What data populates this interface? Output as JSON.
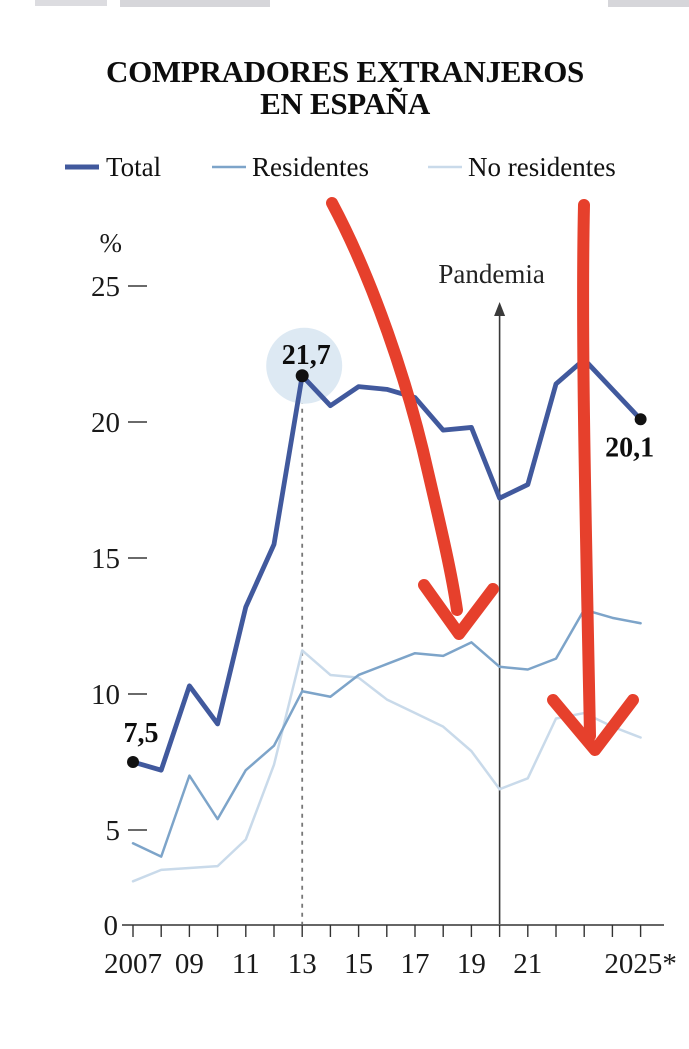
{
  "title": {
    "line1": "COMPRADORES EXTRANJEROS",
    "line2": "EN ESPAÑA"
  },
  "legend": [
    {
      "label": "Total",
      "color": "#41599d",
      "stroke_width": 5
    },
    {
      "label": "Residentes",
      "color": "#7da4c9",
      "stroke_width": 2.5
    },
    {
      "label": "No residentes",
      "color": "#c9daea",
      "stroke_width": 2.5
    }
  ],
  "chart_data": {
    "type": "line",
    "title": "Compradores extranjeros en España",
    "unit": "%",
    "x": [
      2007,
      2008,
      2009,
      2010,
      2011,
      2012,
      2013,
      2014,
      2015,
      2016,
      2017,
      2018,
      2019,
      2020,
      2021,
      2022,
      2023,
      2024,
      2025
    ],
    "series": [
      {
        "name": "Total",
        "color": "#41599d",
        "width": 4.8,
        "values": [
          7.5,
          7.2,
          10.3,
          8.9,
          13.2,
          15.5,
          21.7,
          20.6,
          21.3,
          21.2,
          20.9,
          19.7,
          19.8,
          17.2,
          17.7,
          21.4,
          22.3,
          21.2,
          20.1
        ]
      },
      {
        "name": "Residentes",
        "color": "#7da4c9",
        "width": 2.5,
        "values": [
          4.3,
          3.6,
          7.0,
          5.4,
          7.2,
          8.1,
          10.1,
          9.9,
          10.7,
          11.1,
          11.5,
          11.4,
          11.9,
          11.0,
          10.9,
          11.3,
          13.1,
          12.8,
          12.6
        ]
      },
      {
        "name": "No residentes",
        "color": "#c9daea",
        "width": 2.5,
        "values": [
          2.3,
          2.9,
          3.0,
          3.1,
          4.5,
          7.4,
          11.6,
          10.7,
          10.6,
          9.8,
          9.3,
          8.8,
          7.9,
          6.5,
          6.9,
          9.1,
          9.3,
          8.8,
          8.4
        ]
      }
    ],
    "x_tick_labels": [
      {
        "year": 2007,
        "label": "2007"
      },
      {
        "year": 2009,
        "label": "09"
      },
      {
        "year": 2011,
        "label": "11"
      },
      {
        "year": 2013,
        "label": "13"
      },
      {
        "year": 2015,
        "label": "15"
      },
      {
        "year": 2017,
        "label": "17"
      },
      {
        "year": 2019,
        "label": "19"
      },
      {
        "year": 2021,
        "label": "21"
      },
      {
        "year": 2025,
        "label": "2025*"
      }
    ],
    "y_ticks": [
      0,
      5,
      10,
      15,
      20,
      25
    ],
    "ylim": [
      0,
      26
    ],
    "grid": false,
    "legend_position": "top",
    "annotations": {
      "start": {
        "year": 2007,
        "value": 7.5,
        "label": "7,5"
      },
      "peak": {
        "year": 2013,
        "value": 21.7,
        "label": "21,7",
        "dashed_drop_line": true
      },
      "end": {
        "year": 2025,
        "value": 20.1,
        "label": "20,1"
      },
      "pandemia": {
        "label": "Pandemia",
        "year": 2020
      }
    },
    "colors": {
      "red_arrow": "#e6402c",
      "peak_halo": "#dde9f3",
      "axis": "#333333",
      "dashed_line": "#777777",
      "pandemia_line": "#3a3a3a"
    }
  }
}
